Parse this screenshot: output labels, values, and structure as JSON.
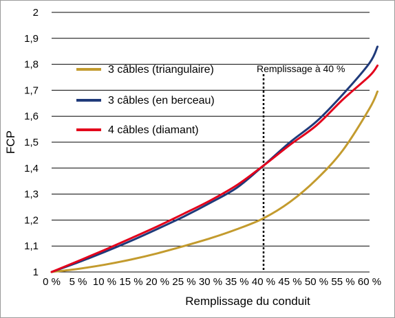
{
  "chart_data": {
    "type": "line",
    "title": "",
    "xlabel": "Remplissage du conduit",
    "ylabel": "FCP",
    "x_ticks": [
      "0 %",
      "5 %",
      "10 %",
      "15 %",
      "20 %",
      "25 %",
      "30 %",
      "35 %",
      "40 %",
      "45 %",
      "50 %",
      "55 %",
      "60 %"
    ],
    "y_ticks": [
      "1",
      "1,1",
      "1,2",
      "1,3",
      "1,4",
      "1,5",
      "1,6",
      "1,7",
      "1,8",
      "1,9",
      "2"
    ],
    "xlim": [
      0,
      60
    ],
    "ylim": [
      1,
      2
    ],
    "grid": "horizontal",
    "legend_position": "upper-left",
    "x": [
      0,
      5,
      10,
      15,
      20,
      25,
      30,
      35,
      40,
      45,
      50,
      55,
      60,
      61.5
    ],
    "series": [
      {
        "name": "3 câbles (triangulaire)",
        "color": "#c39b2e",
        "values": [
          1.0,
          1.012,
          1.028,
          1.048,
          1.072,
          1.1,
          1.13,
          1.165,
          1.207,
          1.27,
          1.357,
          1.47,
          1.63,
          1.695
        ]
      },
      {
        "name": "3 câbles (en berceau)",
        "color": "#1f3a7a",
        "values": [
          1.0,
          1.037,
          1.077,
          1.12,
          1.166,
          1.214,
          1.267,
          1.325,
          1.41,
          1.5,
          1.58,
          1.685,
          1.805,
          1.868
        ]
      },
      {
        "name": "4 câbles (diamant)",
        "color": "#e3001b",
        "values": [
          1.0,
          1.042,
          1.085,
          1.13,
          1.176,
          1.225,
          1.276,
          1.335,
          1.41,
          1.49,
          1.565,
          1.665,
          1.755,
          1.795
        ]
      }
    ],
    "annotation": {
      "label": "Remplissage à 40 %",
      "x": 40,
      "style": "dotted"
    }
  }
}
